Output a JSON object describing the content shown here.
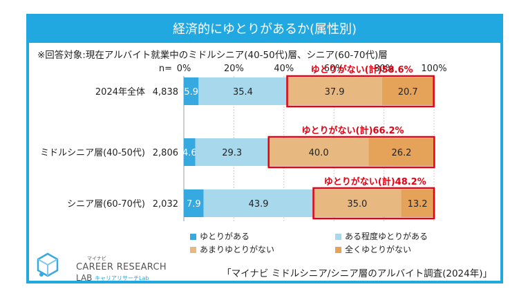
{
  "title": "経済的にゆとりがあるか(属性別)",
  "subtitle": "※回答対象:現在アルバイト就業中のミドルシニア(40-50代)層、シニア(60-70代)層",
  "n_label": "n=",
  "source": "「マイナビ ミドルシニア/シニア層のアルバイト調査(2024年)」",
  "logo": {
    "kana": "マイナビ",
    "line1": "CAREER RESEARCH",
    "line2": "LAB",
    "sub": "キャリアリサーチLab"
  },
  "colors": {
    "title_bg": "#22a8e1",
    "yutori_aru": "#36a9e1",
    "aru_teido": "#a8d8ec",
    "amari_nai": "#e7b981",
    "mattaku_nai": "#e5a35a",
    "highlight": "#e60012"
  },
  "chart_data": {
    "type": "bar",
    "orientation": "horizontal",
    "stacked": true,
    "xlim": [
      0,
      100
    ],
    "x_ticks": [
      "0%",
      "20%",
      "40%",
      "60%",
      "80%",
      "100%"
    ],
    "categories": [
      "2024年全体",
      "ミドルシニア層(40-50代)",
      "シニア層(60-70代)"
    ],
    "n": [
      "4,838",
      "2,806",
      "2,032"
    ],
    "series": [
      {
        "name": "ゆとりがある",
        "values": [
          5.9,
          4.6,
          7.9
        ]
      },
      {
        "name": "ある程度ゆとりがある",
        "values": [
          35.4,
          29.3,
          43.9
        ]
      },
      {
        "name": "あまりゆとりがない",
        "values": [
          37.9,
          40.0,
          35.0
        ]
      },
      {
        "name": "全くゆとりがない",
        "values": [
          20.7,
          26.2,
          13.2
        ]
      }
    ],
    "annotations": [
      "ゆとりがない(計)58.6%",
      "ゆとりがない(計)66.2%",
      "ゆとりがない(計)48.2%"
    ]
  }
}
